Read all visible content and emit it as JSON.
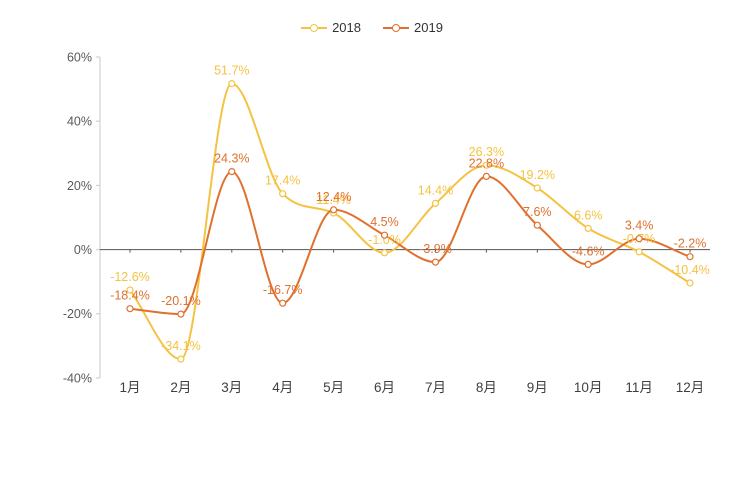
{
  "chart_data": {
    "type": "line",
    "smooth": true,
    "grid": false,
    "categories": [
      "1月",
      "2月",
      "3月",
      "4月",
      "5月",
      "6月",
      "7月",
      "8月",
      "9月",
      "10月",
      "11月",
      "12月"
    ],
    "series": [
      {
        "name": "2018",
        "color": "#F5C342",
        "values": [
          -12.6,
          -34.1,
          51.7,
          17.4,
          11.4,
          -1.0,
          14.4,
          26.3,
          19.2,
          6.6,
          -0.7,
          -10.4
        ],
        "labels": [
          "-12.6%",
          "-34.1%",
          "51.7%",
          "17.4%",
          "11.4%",
          "-1.0%",
          "14.4%",
          "26.3%",
          "19.2%",
          "6.6%",
          "-0.7%",
          "-10.4%"
        ]
      },
      {
        "name": "2019",
        "color": "#E0702E",
        "values": [
          -18.4,
          -20.1,
          24.3,
          -16.7,
          12.4,
          4.5,
          -3.9,
          22.8,
          7.6,
          -4.6,
          3.4,
          -2.2
        ],
        "labels": [
          "-18.4%",
          "-20.1%",
          "24.3%",
          "-16.7%",
          "12.4%",
          "4.5%",
          "-3.9%",
          "22.8%",
          "7.6%",
          "-4.6%",
          "3.4%",
          "-2.2%"
        ]
      }
    ],
    "y_axis": {
      "ticks": [
        "60%",
        "40%",
        "20%",
        "0%",
        "-20%",
        "-40%"
      ],
      "tick_values": [
        60,
        40,
        20,
        0,
        -20,
        -40
      ],
      "ylim": [
        -40,
        60
      ]
    },
    "legend": {
      "position": "top",
      "items": [
        "2018",
        "2019"
      ]
    }
  },
  "colors": {
    "background": "#ffffff",
    "axis_line": "#C9C9C9",
    "zero_line": "#555555",
    "tick_text": "#595959",
    "category_text": "#404040",
    "legend_text": "#333333"
  }
}
